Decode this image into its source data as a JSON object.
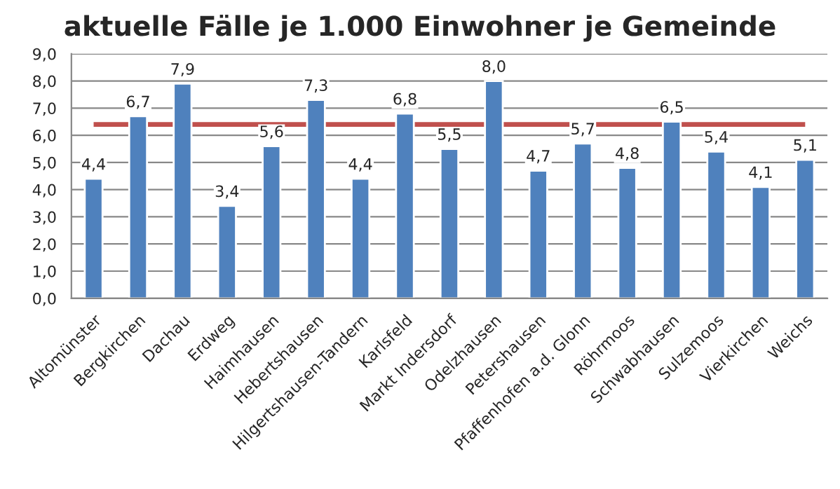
{
  "chart_data": {
    "type": "bar",
    "title": "aktuelle Fälle je 1.000 Einwohner je Gemeinde",
    "categories": [
      "Altomünster",
      "Bergkirchen",
      "Dachau",
      "Erdweg",
      "Haimhausen",
      "Hebertshausen",
      "Hilgertshausen-Tandern",
      "Karlsfeld",
      "Markt Indersdorf",
      "Odelzhausen",
      "Petershausen",
      "Pfaffenhofen a.d. Glonn",
      "Röhrmoos",
      "Schwabhausen",
      "Sulzemoos",
      "Vierkirchen",
      "Weichs"
    ],
    "values": [
      4.4,
      6.7,
      7.9,
      3.4,
      5.6,
      7.3,
      4.4,
      6.8,
      5.5,
      8.0,
      4.7,
      5.7,
      4.8,
      6.5,
      5.4,
      4.1,
      5.1
    ],
    "value_labels": [
      "4,4",
      "6,7",
      "7,9",
      "3,4",
      "5,6",
      "7,3",
      "4,4",
      "6,8",
      "5,5",
      "8,0",
      "4,7",
      "5,7",
      "4,8",
      "6,5",
      "5,4",
      "4,1",
      "5,1"
    ],
    "color": "#4f81bd",
    "ylim": [
      0,
      9
    ],
    "yticks": [
      {
        "value": 0,
        "label": "0,0"
      },
      {
        "value": 1,
        "label": "1,0"
      },
      {
        "value": 2,
        "label": "2,0"
      },
      {
        "value": 3,
        "label": "3,0"
      },
      {
        "value": 4,
        "label": "4,0"
      },
      {
        "value": 5,
        "label": "5,0"
      },
      {
        "value": 6,
        "label": "6,0"
      },
      {
        "value": 7,
        "label": "7,0"
      },
      {
        "value": 8,
        "label": "8,0"
      },
      {
        "value": 9,
        "label": "9,0"
      }
    ],
    "ref_lines": [
      {
        "axis": "y",
        "value": 6.4,
        "color": "#c0504d"
      }
    ],
    "grid": "y"
  }
}
